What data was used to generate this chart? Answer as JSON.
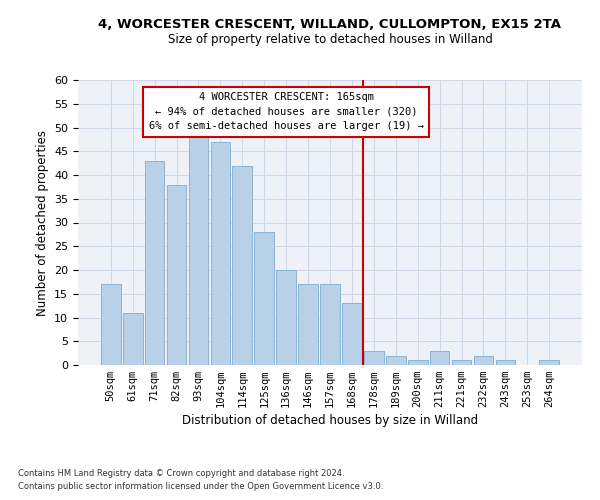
{
  "title_line1": "4, WORCESTER CRESCENT, WILLAND, CULLOMPTON, EX15 2TA",
  "title_line2": "Size of property relative to detached houses in Willand",
  "xlabel": "Distribution of detached houses by size in Willand",
  "ylabel": "Number of detached properties",
  "categories": [
    "50sqm",
    "61sqm",
    "71sqm",
    "82sqm",
    "93sqm",
    "104sqm",
    "114sqm",
    "125sqm",
    "136sqm",
    "146sqm",
    "157sqm",
    "168sqm",
    "178sqm",
    "189sqm",
    "200sqm",
    "211sqm",
    "221sqm",
    "232sqm",
    "243sqm",
    "253sqm",
    "264sqm"
  ],
  "values": [
    17,
    11,
    43,
    38,
    50,
    47,
    42,
    28,
    20,
    17,
    17,
    13,
    3,
    2,
    1,
    3,
    1,
    2,
    1,
    0,
    1
  ],
  "bar_color": "#b8d0e8",
  "bar_edge_color": "#8ab4d4",
  "vline_color": "#cc0000",
  "annotation_text": "4 WORCESTER CRESCENT: 165sqm\n← 94% of detached houses are smaller (320)\n6% of semi-detached houses are larger (19) →",
  "annotation_box_color": "#cc0000",
  "ylim": [
    0,
    60
  ],
  "yticks": [
    0,
    5,
    10,
    15,
    20,
    25,
    30,
    35,
    40,
    45,
    50,
    55,
    60
  ],
  "grid_color": "#d0d8e8",
  "background_color": "#eef2f8",
  "footer_line1": "Contains HM Land Registry data © Crown copyright and database right 2024.",
  "footer_line2": "Contains public sector information licensed under the Open Government Licence v3.0."
}
